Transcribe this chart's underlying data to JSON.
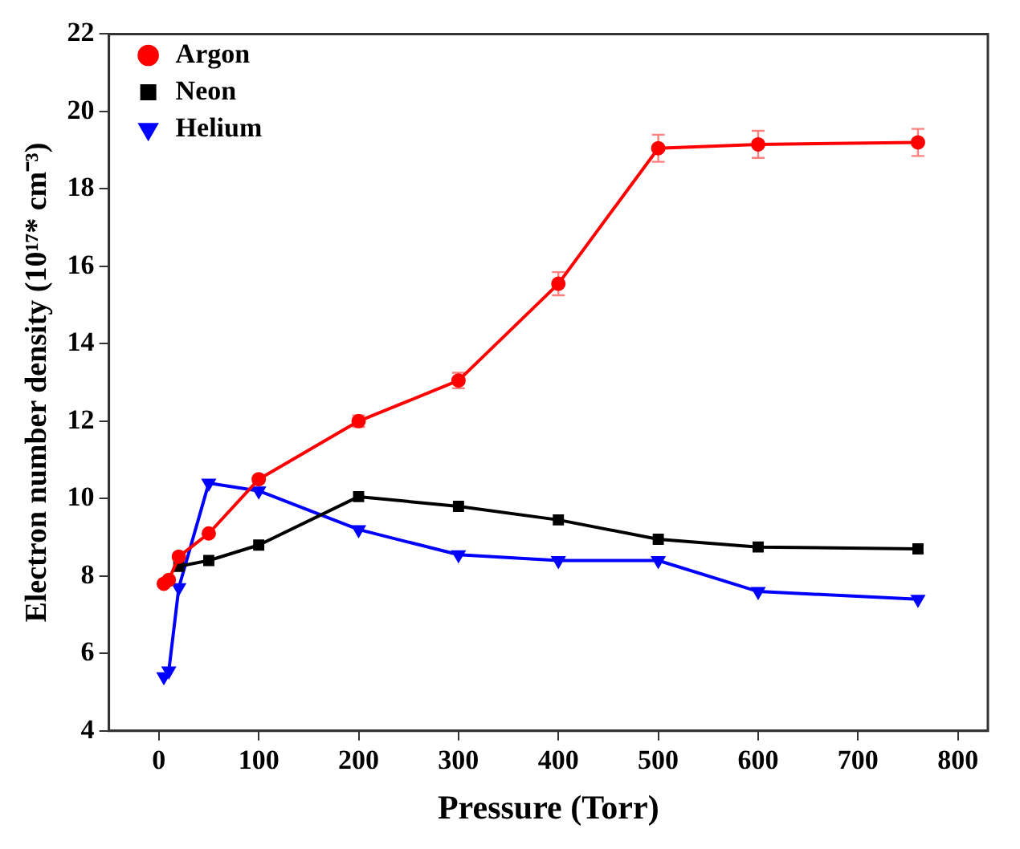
{
  "chart_data": {
    "type": "line",
    "xlabel": "Pressure (Torr)",
    "ylabel": "Electron number density (10¹⁷* cm⁻³)",
    "xlim": [
      -50,
      830
    ],
    "xticks": [
      0,
      100,
      200,
      300,
      400,
      500,
      600,
      700,
      800
    ],
    "ylim": [
      4,
      22
    ],
    "yticks": [
      4,
      6,
      8,
      10,
      12,
      14,
      16,
      18,
      20,
      22
    ],
    "grid": false,
    "legend": "top left",
    "line_style": "solid",
    "series": [
      {
        "name": "Argon",
        "color": "#ff0000",
        "marker": "circle",
        "x": [
          5,
          10,
          20,
          50,
          100,
          200,
          300,
          400,
          500,
          600,
          760
        ],
        "values": [
          7.8,
          7.9,
          8.5,
          9.1,
          10.5,
          12.0,
          13.05,
          15.55,
          19.05,
          19.15,
          19.2
        ],
        "errors": [
          null,
          null,
          null,
          null,
          null,
          0.15,
          0.2,
          0.3,
          0.35,
          0.35,
          0.35
        ]
      },
      {
        "name": "Neon",
        "color": "#000000",
        "marker": "square",
        "x": [
          20,
          50,
          100,
          200,
          300,
          400,
          500,
          600,
          760
        ],
        "values": [
          8.25,
          8.4,
          8.8,
          10.05,
          9.8,
          9.45,
          8.95,
          8.75,
          8.7
        ]
      },
      {
        "name": "Helium",
        "color": "#0000ff",
        "marker": "triangle",
        "x": [
          5,
          10,
          20,
          50,
          100,
          200,
          300,
          400,
          500,
          600,
          760
        ],
        "values": [
          5.4,
          5.55,
          7.7,
          10.4,
          10.2,
          9.2,
          8.55,
          8.4,
          8.4,
          7.6,
          7.4
        ]
      }
    ]
  }
}
